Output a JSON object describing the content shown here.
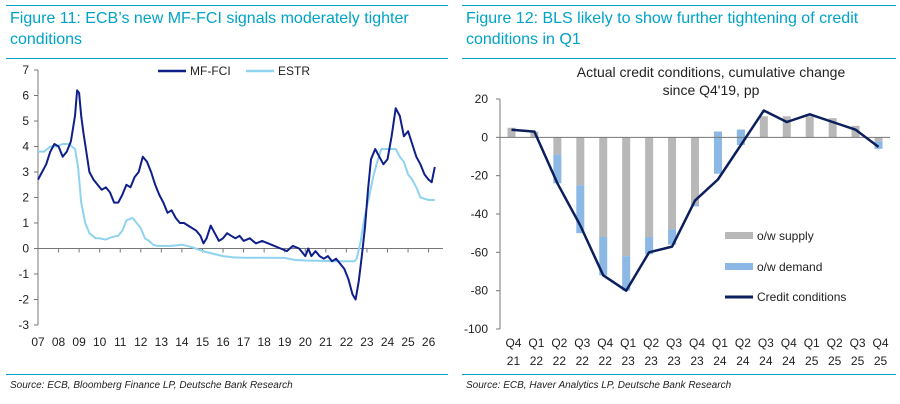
{
  "colors": {
    "accent": "#00a3c7",
    "mf_fci": "#0f1f8a",
    "estr": "#8fd3ee",
    "supply": "#b8b8b8",
    "demand": "#8cb8e6",
    "credit": "#0c1f5c"
  },
  "left": {
    "title": "Figure 11: ECB’s new MF-FCI signals moderately tighter conditions",
    "source": "Source: ECB, Bloomberg Finance LP, Deutsche Bank Research"
  },
  "right": {
    "title": "Figure 12: BLS likely to show further tightening of credit conditions in Q1",
    "source": "Source: ECB, Haver Analytics LP, Deutsche Bank Research"
  },
  "chart_data": [
    {
      "type": "line",
      "title": "",
      "ylim": [
        -3,
        7
      ],
      "y_ticks": [
        "7",
        "6",
        "5",
        "4",
        "3",
        "2",
        "1",
        "0",
        "-1",
        "-2",
        "-3"
      ],
      "x_ticks": [
        "07",
        "08",
        "09",
        "10",
        "11",
        "12",
        "13",
        "14",
        "15",
        "16",
        "17",
        "18",
        "19",
        "20",
        "21",
        "22",
        "23",
        "24",
        "25",
        "26"
      ],
      "xlim": [
        2007,
        2026.7
      ],
      "legend": [
        "MF-FCI",
        "ESTR"
      ],
      "series": [
        {
          "name": "MF-FCI",
          "x": [
            2007.0,
            2007.2,
            2007.4,
            2007.6,
            2007.8,
            2008.0,
            2008.2,
            2008.4,
            2008.6,
            2008.8,
            2008.9,
            2009.0,
            2009.1,
            2009.2,
            2009.35,
            2009.5,
            2009.7,
            2009.9,
            2010.1,
            2010.3,
            2010.5,
            2010.7,
            2010.9,
            2011.1,
            2011.3,
            2011.5,
            2011.7,
            2011.9,
            2012.1,
            2012.3,
            2012.5,
            2012.7,
            2012.9,
            2013.1,
            2013.3,
            2013.5,
            2013.7,
            2013.9,
            2014.1,
            2014.3,
            2014.5,
            2014.7,
            2014.9,
            2015.05,
            2015.2,
            2015.4,
            2015.6,
            2015.8,
            2016.0,
            2016.2,
            2016.4,
            2016.6,
            2016.8,
            2017.0,
            2017.3,
            2017.6,
            2017.9,
            2018.2,
            2018.5,
            2018.8,
            2019.1,
            2019.4,
            2019.7,
            2020.0,
            2020.15,
            2020.3,
            2020.5,
            2020.7,
            2020.9,
            2021.1,
            2021.3,
            2021.5,
            2021.7,
            2021.9,
            2022.1,
            2022.3,
            2022.45,
            2022.6,
            2022.75,
            2022.9,
            2023.05,
            2023.2,
            2023.4,
            2023.6,
            2023.8,
            2024.0,
            2024.2,
            2024.4,
            2024.6,
            2024.8,
            2025.0,
            2025.2,
            2025.4,
            2025.6,
            2025.8,
            2026.0,
            2026.15,
            2026.3
          ],
          "values": [
            2.7,
            3.0,
            3.3,
            3.8,
            4.1,
            4.0,
            3.6,
            3.8,
            4.2,
            5.2,
            6.2,
            6.1,
            5.2,
            4.6,
            3.8,
            3.0,
            2.7,
            2.5,
            2.3,
            2.4,
            2.2,
            1.8,
            1.8,
            2.1,
            2.5,
            2.4,
            2.8,
            3.0,
            3.6,
            3.4,
            3.0,
            2.5,
            2.1,
            1.8,
            1.4,
            1.5,
            1.2,
            1.0,
            1.0,
            0.9,
            0.8,
            0.7,
            0.5,
            0.2,
            0.4,
            0.9,
            0.6,
            0.3,
            0.4,
            0.6,
            0.5,
            0.4,
            0.5,
            0.3,
            0.4,
            0.2,
            0.3,
            0.2,
            0.1,
            0.0,
            -0.1,
            0.1,
            0.0,
            -0.3,
            0.0,
            -0.3,
            -0.1,
            -0.3,
            -0.4,
            -0.3,
            -0.5,
            -0.4,
            -0.6,
            -0.8,
            -1.2,
            -1.8,
            -2.0,
            -1.3,
            -0.3,
            0.8,
            2.3,
            3.5,
            3.9,
            3.6,
            3.3,
            3.5,
            4.4,
            5.5,
            5.2,
            4.4,
            4.6,
            4.1,
            3.6,
            3.3,
            2.9,
            2.7,
            2.6,
            3.2
          ]
        },
        {
          "name": "ESTR",
          "x": [
            2007.0,
            2007.3,
            2007.6,
            2007.9,
            2008.2,
            2008.5,
            2008.8,
            2008.95,
            2009.1,
            2009.3,
            2009.5,
            2009.8,
            2010.0,
            2010.3,
            2010.6,
            2010.9,
            2011.1,
            2011.3,
            2011.6,
            2011.8,
            2012.0,
            2012.2,
            2012.4,
            2012.6,
            2012.8,
            2013.0,
            2013.5,
            2014.0,
            2014.5,
            2015.0,
            2015.5,
            2016.0,
            2016.5,
            2017.0,
            2018.0,
            2019.0,
            2019.5,
            2020.0,
            2020.5,
            2021.0,
            2021.5,
            2022.0,
            2022.4,
            2022.5,
            2022.6,
            2022.7,
            2022.8,
            2022.9,
            2023.1,
            2023.3,
            2023.5,
            2023.7,
            2024.0,
            2024.4,
            2024.6,
            2024.8,
            2025.0,
            2025.2,
            2025.4,
            2025.6,
            2026.0,
            2026.3
          ],
          "values": [
            3.8,
            3.8,
            4.0,
            4.0,
            4.1,
            4.1,
            3.9,
            3.2,
            1.8,
            1.0,
            0.6,
            0.4,
            0.4,
            0.35,
            0.45,
            0.5,
            0.7,
            1.1,
            1.2,
            1.0,
            0.8,
            0.4,
            0.3,
            0.15,
            0.1,
            0.1,
            0.1,
            0.15,
            0.05,
            -0.1,
            -0.2,
            -0.3,
            -0.35,
            -0.36,
            -0.36,
            -0.37,
            -0.45,
            -0.47,
            -0.48,
            -0.49,
            -0.5,
            -0.5,
            -0.5,
            -0.4,
            -0.05,
            0.3,
            0.8,
            1.3,
            2.0,
            2.8,
            3.4,
            3.9,
            3.9,
            3.9,
            3.6,
            3.4,
            2.9,
            2.7,
            2.4,
            2.0,
            1.9,
            1.9
          ]
        }
      ]
    },
    {
      "type": "bar",
      "title": "Actual credit conditions, cumulative change since Q4'19, pp",
      "ylim": [
        -100,
        20
      ],
      "y_ticks": [
        "20",
        "0",
        "-20",
        "-40",
        "-60",
        "-80",
        "-100"
      ],
      "categories": [
        [
          "Q4",
          "21"
        ],
        [
          "Q1",
          "22"
        ],
        [
          "Q2",
          "22"
        ],
        [
          "Q3",
          "22"
        ],
        [
          "Q4",
          "22"
        ],
        [
          "Q1",
          "23"
        ],
        [
          "Q2",
          "23"
        ],
        [
          "Q3",
          "23"
        ],
        [
          "Q4",
          "23"
        ],
        [
          "Q1",
          "24"
        ],
        [
          "Q2",
          "24"
        ],
        [
          "Q3",
          "24"
        ],
        [
          "Q4",
          "24"
        ],
        [
          "Q1",
          "25"
        ],
        [
          "Q2",
          "25"
        ],
        [
          "Q3",
          "25"
        ],
        [
          "Q4",
          "25"
        ]
      ],
      "legend": [
        "o/w supply",
        "o/w demand",
        "Credit conditions"
      ],
      "series": [
        {
          "name": "o/w supply",
          "values": [
            5,
            3,
            -9,
            -25,
            -52,
            -62,
            -52,
            -48,
            -35,
            3,
            4,
            11,
            11,
            11,
            10,
            6,
            -2
          ]
        },
        {
          "name": "o/w demand",
          "values": [
            0,
            0,
            -15,
            -25,
            -20,
            -18,
            -9,
            -8,
            -1,
            -22,
            -8,
            0,
            0,
            0,
            0,
            0,
            -4
          ]
        },
        {
          "name": "Credit conditions",
          "values": [
            4,
            3,
            -24,
            -46,
            -72,
            -80,
            -60,
            -57,
            -33,
            -22,
            -4,
            14,
            8,
            12,
            8,
            4,
            -5
          ]
        }
      ]
    }
  ]
}
